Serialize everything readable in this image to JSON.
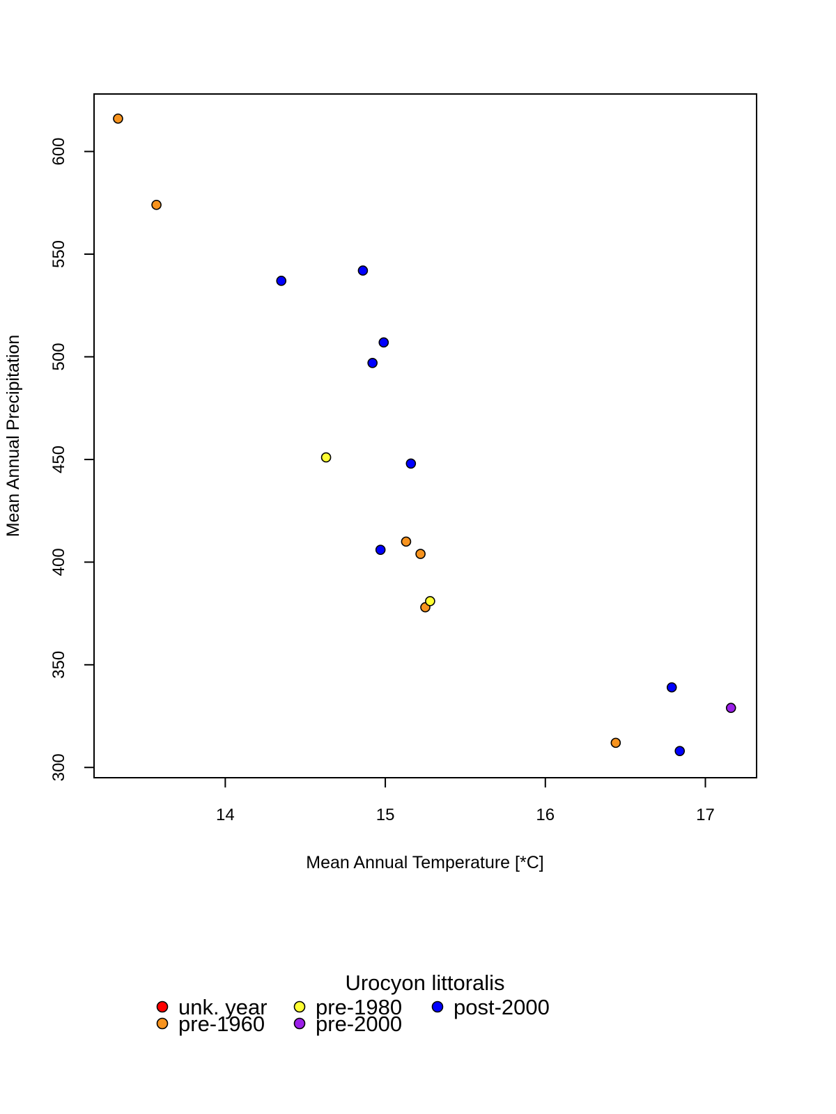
{
  "chart_data": {
    "type": "scatter",
    "title": "",
    "xlabel": "Mean Annual Temperature [*C]",
    "ylabel": "Mean Annual Precipitation",
    "xlim": [
      13.18,
      17.32
    ],
    "ylim": [
      295,
      628
    ],
    "xticks": [
      14,
      15,
      16,
      17
    ],
    "yticks": [
      300,
      350,
      400,
      450,
      500,
      550,
      600
    ],
    "grid": false,
    "legend": {
      "title": "Urocyon littoralis",
      "placement": "bottom-center",
      "entries": [
        {
          "label": "unk. year",
          "color": "#FF0000"
        },
        {
          "label": "pre-1960",
          "color": "#F7931E"
        },
        {
          "label": "pre-1980",
          "color": "#FFFF33"
        },
        {
          "label": "pre-2000",
          "color": "#9B1FE8"
        },
        {
          "label": "post-2000",
          "color": "#0000FF"
        }
      ]
    },
    "series": [
      {
        "name": "unk. year",
        "color": "#FF0000",
        "points": []
      },
      {
        "name": "pre-1960",
        "color": "#F7931E",
        "points": [
          {
            "x": 13.33,
            "y": 616
          },
          {
            "x": 13.57,
            "y": 574
          },
          {
            "x": 15.13,
            "y": 410
          },
          {
            "x": 15.22,
            "y": 404
          },
          {
            "x": 15.25,
            "y": 378
          },
          {
            "x": 16.44,
            "y": 312
          }
        ]
      },
      {
        "name": "pre-1980",
        "color": "#FFFF33",
        "points": [
          {
            "x": 14.63,
            "y": 451
          },
          {
            "x": 15.28,
            "y": 381
          }
        ]
      },
      {
        "name": "pre-2000",
        "color": "#9B1FE8",
        "points": [
          {
            "x": 17.16,
            "y": 329
          }
        ]
      },
      {
        "name": "post-2000",
        "color": "#0000FF",
        "points": [
          {
            "x": 14.35,
            "y": 537
          },
          {
            "x": 14.86,
            "y": 542
          },
          {
            "x": 14.99,
            "y": 507
          },
          {
            "x": 14.92,
            "y": 497
          },
          {
            "x": 15.16,
            "y": 448
          },
          {
            "x": 14.97,
            "y": 406
          },
          {
            "x": 16.79,
            "y": 339
          },
          {
            "x": 16.84,
            "y": 308
          }
        ]
      }
    ]
  }
}
